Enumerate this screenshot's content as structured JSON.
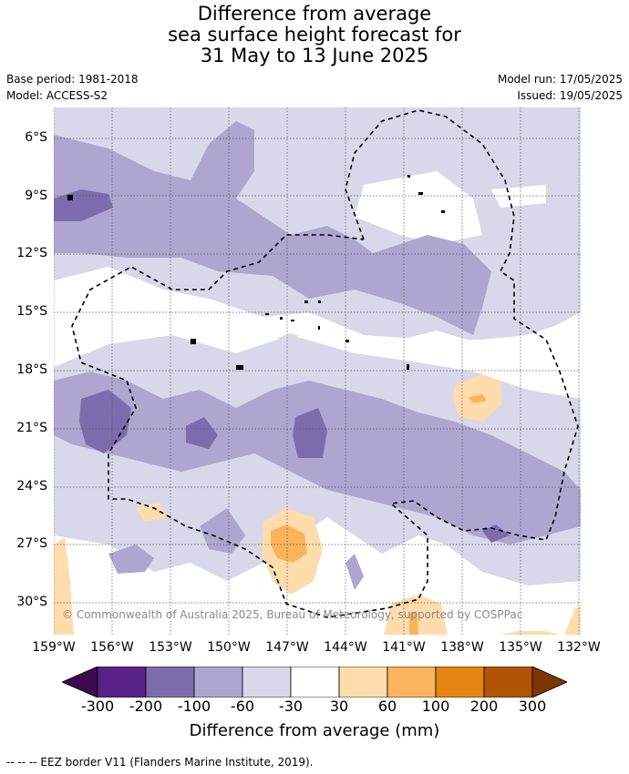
{
  "title": {
    "line1": "Difference from average",
    "line2": "sea surface height forecast for",
    "line3": "31 May to 13 June 2025"
  },
  "meta": {
    "base_period": "Base period: 1981-2018",
    "model": "Model: ACCESS-S2",
    "model_run": "Model run: 17/05/2025",
    "issued": "Issued: 19/05/2025"
  },
  "map": {
    "lat_labels": [
      "6°S",
      "9°S",
      "12°S",
      "15°S",
      "18°S",
      "21°S",
      "24°S",
      "27°S",
      "30°S"
    ],
    "lon_labels": [
      "159°W",
      "156°W",
      "153°W",
      "150°W",
      "147°W",
      "144°W",
      "141°W",
      "138°W",
      "135°W",
      "132°W"
    ],
    "copyright": "© Commonwealth of Australia 2025, Bureau of Meteorology, supported by COSPPac"
  },
  "colorbar": {
    "ticks": [
      "-300",
      "-200",
      "-100",
      "-60",
      "-30",
      "30",
      "60",
      "100",
      "200",
      "300"
    ],
    "colors": {
      "under": "#3b0b4f",
      "c1": "#5a2189",
      "c2": "#7d6cad",
      "c3": "#aea6d1",
      "c4": "#d8d8ea",
      "neutral": "#ffffff",
      "c6": "#fedcac",
      "c7": "#fbb45b",
      "c8": "#e58410",
      "c9": "#b05406",
      "over": "#7b3604"
    },
    "title": "Difference from average (mm)"
  },
  "legend_note": "-- -- -- EEZ border V11 (Flanders Marine Institute, 2019)."
}
